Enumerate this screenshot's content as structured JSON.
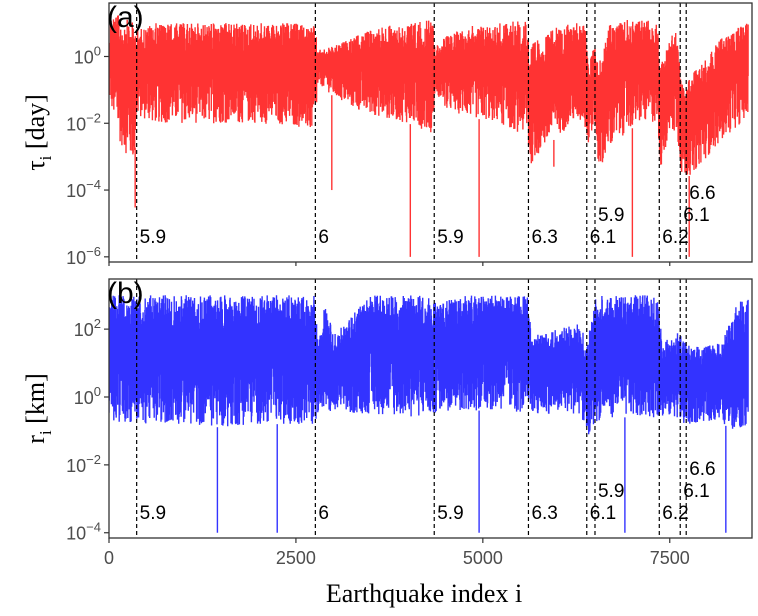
{
  "chart_data": [
    {
      "type": "line",
      "panel_label": "(a)",
      "ylabel_main": "τ",
      "ylabel_sub": "i",
      "ylabel_unit": "[day]",
      "xlabel": "",
      "xlim": [
        0,
        8600
      ],
      "ylim": [
        7e-07,
        40
      ],
      "yscale": "log",
      "yticks": [
        1e-06,
        0.0001,
        0.01,
        1
      ],
      "ytick_labels": [
        {
          "base": "10",
          "exp": "−6"
        },
        {
          "base": "10",
          "exp": "−4"
        },
        {
          "base": "10",
          "exp": "−2"
        },
        {
          "base": "10",
          "exp": "0"
        }
      ],
      "series_color": "#ff3333",
      "profile": {
        "x": [
          0,
          20,
          80,
          150,
          250,
          340,
          370,
          600,
          1000,
          1500,
          2000,
          2500,
          2750,
          2800,
          3000,
          3300,
          3600,
          4000,
          4330,
          4360,
          4500,
          4800,
          5200,
          5600,
          5620,
          5800,
          6000,
          6200,
          6360,
          6400,
          6450,
          6500,
          6540,
          6700,
          6900,
          7100,
          7340,
          7370,
          7500,
          7600,
          7650,
          7700,
          7800,
          8000,
          8200,
          8400,
          8550
        ],
        "lo": [
          -1.2,
          -1.5,
          -2.0,
          -2.6,
          -3.0,
          -3.2,
          -1.8,
          -2.0,
          -2.0,
          -2.0,
          -2.0,
          -2.1,
          -2.3,
          -0.8,
          -1.2,
          -1.6,
          -1.8,
          -2.0,
          -2.3,
          -1.0,
          -1.6,
          -1.8,
          -2.0,
          -2.4,
          -3.3,
          -2.8,
          -2.4,
          -2.0,
          -2.0,
          -3.0,
          -2.3,
          -2.0,
          -3.4,
          -2.8,
          -2.3,
          -2.0,
          -2.0,
          -3.4,
          -2.3,
          -2.3,
          -3.5,
          -3.7,
          -3.5,
          -3.0,
          -2.5,
          -2.1,
          -1.8
        ],
        "hi": [
          0.6,
          1.3,
          1.3,
          1.2,
          1.1,
          1.0,
          0.8,
          1.0,
          1.0,
          1.0,
          1.0,
          1.0,
          0.9,
          0.2,
          0.3,
          0.6,
          0.9,
          1.0,
          1.1,
          0.3,
          0.6,
          0.9,
          1.0,
          1.1,
          0.3,
          0.6,
          0.9,
          1.0,
          1.1,
          0.0,
          0.2,
          0.4,
          -0.3,
          1.0,
          1.1,
          1.1,
          1.1,
          -0.3,
          0.5,
          0.9,
          -0.6,
          -1.0,
          -0.5,
          0.0,
          0.6,
          0.9,
          1.0
        ]
      },
      "spikes": [
        {
          "x": 350,
          "y": 3e-05
        },
        {
          "x": 2980,
          "y": 0.0001
        },
        {
          "x": 4030,
          "y": 1e-06
        },
        {
          "x": 4950,
          "y": 1e-06
        },
        {
          "x": 5950,
          "y": 0.0005
        },
        {
          "x": 7000,
          "y": 1e-06
        },
        {
          "x": 7760,
          "y": 1e-06
        }
      ],
      "events": [
        {
          "x": 370,
          "mag": "5.9",
          "row": 0
        },
        {
          "x": 2760,
          "mag": "6",
          "row": 0
        },
        {
          "x": 4350,
          "mag": "5.9",
          "row": 0
        },
        {
          "x": 5610,
          "mag": "6.3",
          "row": 0
        },
        {
          "x": 6390,
          "mag": "6.1",
          "row": 0
        },
        {
          "x": 6500,
          "mag": "5.9",
          "row": 1
        },
        {
          "x": 7360,
          "mag": "6.2",
          "row": 0
        },
        {
          "x": 7640,
          "mag": "6.1",
          "row": 1
        },
        {
          "x": 7720,
          "mag": "6.6",
          "row": 2
        }
      ]
    },
    {
      "type": "line",
      "panel_label": "(b)",
      "ylabel_main": "r",
      "ylabel_sub": "i",
      "ylabel_unit": "[km]",
      "xlabel": "Earthquake index i",
      "xlim": [
        0,
        8600
      ],
      "ylim": [
        7e-05,
        3000
      ],
      "yscale": "log",
      "yticks": [
        0.0001,
        0.01,
        1,
        100
      ],
      "ytick_labels": [
        {
          "base": "10",
          "exp": "−4"
        },
        {
          "base": "10",
          "exp": "−2"
        },
        {
          "base": "10",
          "exp": "0"
        },
        {
          "base": "10",
          "exp": "2"
        }
      ],
      "xticks": [
        0,
        2500,
        5000,
        7500
      ],
      "xtick_labels": [
        "0",
        "2500",
        "5000",
        "7500"
      ],
      "series_color": "#3333ff",
      "profile": {
        "x": [
          0,
          100,
          400,
          1000,
          1500,
          2000,
          2500,
          2750,
          2800,
          2900,
          3000,
          3200,
          3500,
          4000,
          4330,
          4400,
          4800,
          5200,
          5600,
          5650,
          6000,
          6300,
          6400,
          6500,
          6600,
          7000,
          7340,
          7400,
          7600,
          7700,
          7800,
          8000,
          8200,
          8400,
          8550
        ],
        "lo": [
          -0.5,
          -0.8,
          -0.8,
          -0.8,
          -0.9,
          -0.8,
          -0.8,
          -0.8,
          -0.4,
          -0.6,
          -0.5,
          -0.5,
          -0.5,
          -0.6,
          -0.6,
          -0.4,
          -0.4,
          -0.4,
          -0.5,
          -0.5,
          -0.5,
          -0.5,
          -1.2,
          -0.8,
          -0.6,
          -0.6,
          -0.6,
          -0.6,
          -0.6,
          -1.0,
          -0.8,
          -0.7,
          -0.8,
          -1.0,
          -0.8
        ],
        "hi": [
          3.0,
          3.0,
          3.0,
          3.0,
          3.0,
          3.0,
          3.0,
          3.0,
          1.5,
          3.0,
          1.8,
          2.3,
          3.0,
          3.0,
          3.0,
          2.8,
          3.0,
          3.0,
          3.0,
          1.8,
          2.0,
          2.2,
          1.6,
          3.0,
          3.0,
          3.0,
          3.0,
          1.7,
          1.9,
          1.7,
          1.5,
          1.5,
          1.6,
          2.8,
          2.9
        ]
      },
      "spikes": [
        {
          "x": 1450,
          "y": 0.0001
        },
        {
          "x": 2250,
          "y": 0.0001
        },
        {
          "x": 4950,
          "y": 0.0001
        },
        {
          "x": 6900,
          "y": 0.0001
        },
        {
          "x": 8250,
          "y": 0.0001
        }
      ],
      "events": [
        {
          "x": 370,
          "mag": "5.9",
          "row": 0
        },
        {
          "x": 2760,
          "mag": "6",
          "row": 0
        },
        {
          "x": 4350,
          "mag": "5.9",
          "row": 0
        },
        {
          "x": 5610,
          "mag": "6.3",
          "row": 0
        },
        {
          "x": 6390,
          "mag": "6.1",
          "row": 0
        },
        {
          "x": 6500,
          "mag": "5.9",
          "row": 1
        },
        {
          "x": 7360,
          "mag": "6.2",
          "row": 0
        },
        {
          "x": 7640,
          "mag": "6.1",
          "row": 1
        },
        {
          "x": 7720,
          "mag": "6.6",
          "row": 2
        }
      ]
    }
  ]
}
